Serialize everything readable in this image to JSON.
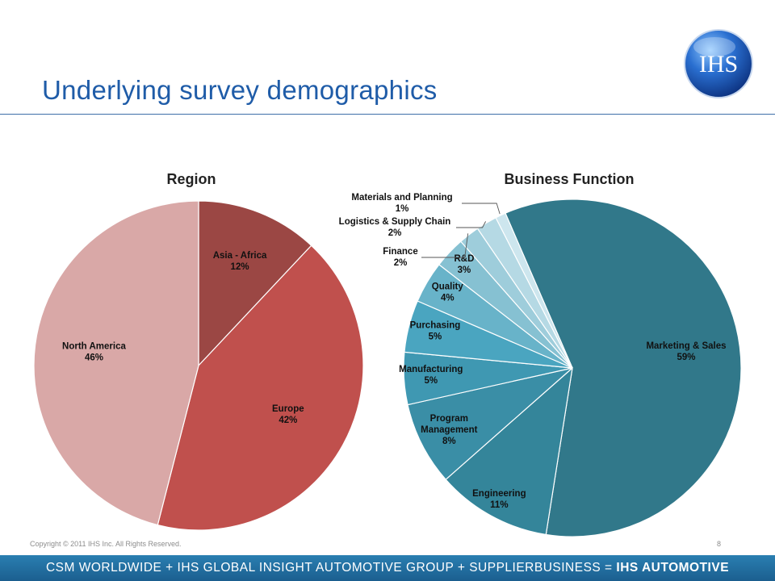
{
  "page": {
    "title": "Underlying survey demographics",
    "logo_text": "IHS",
    "copyright": "Copyright © 2011 IHS Inc. All Rights Reserved.",
    "page_number": "8",
    "footer_regular": "CSM WORLDWIDE + IHS GLOBAL INSIGHT AUTOMOTIVE GROUP + SUPPLIERBUSINESS = ",
    "footer_bold": "IHS AUTOMOTIVE"
  },
  "colors": {
    "title": "#1f5ca8",
    "footer_bar": "#1f6c9f"
  },
  "chart_data": [
    {
      "type": "pie",
      "title": "Region",
      "categories": [
        "Asia - Africa",
        "Europe",
        "North America"
      ],
      "values": [
        12,
        42,
        46
      ],
      "labels": [
        "12%",
        "42%",
        "46%"
      ],
      "colors": [
        "#9b4744",
        "#c0504d",
        "#d9a8a7"
      ],
      "start": "top, clockwise"
    },
    {
      "type": "pie",
      "title": "Business Function",
      "categories": [
        "Marketing & Sales",
        "Engineering",
        "Program Management",
        "Manufacturing",
        "Purchasing",
        "Quality",
        "R&D",
        "Finance",
        "Logistics & Supply Chain",
        "Materials and Planning"
      ],
      "values": [
        59,
        11,
        8,
        5,
        5,
        4,
        3,
        2,
        2,
        1
      ],
      "labels": [
        "59%",
        "11%",
        "8%",
        "5%",
        "5%",
        "4%",
        "3%",
        "2%",
        "2%",
        "1%"
      ],
      "colors": [
        "#31788a",
        "#34859a",
        "#3a8ea6",
        "#3f98b2",
        "#4aa5c0",
        "#68b3c9",
        "#86c1d2",
        "#9ecddb",
        "#b5d9e4",
        "#cde6ee"
      ],
      "start": "clockwise, small slices at top-left"
    }
  ]
}
